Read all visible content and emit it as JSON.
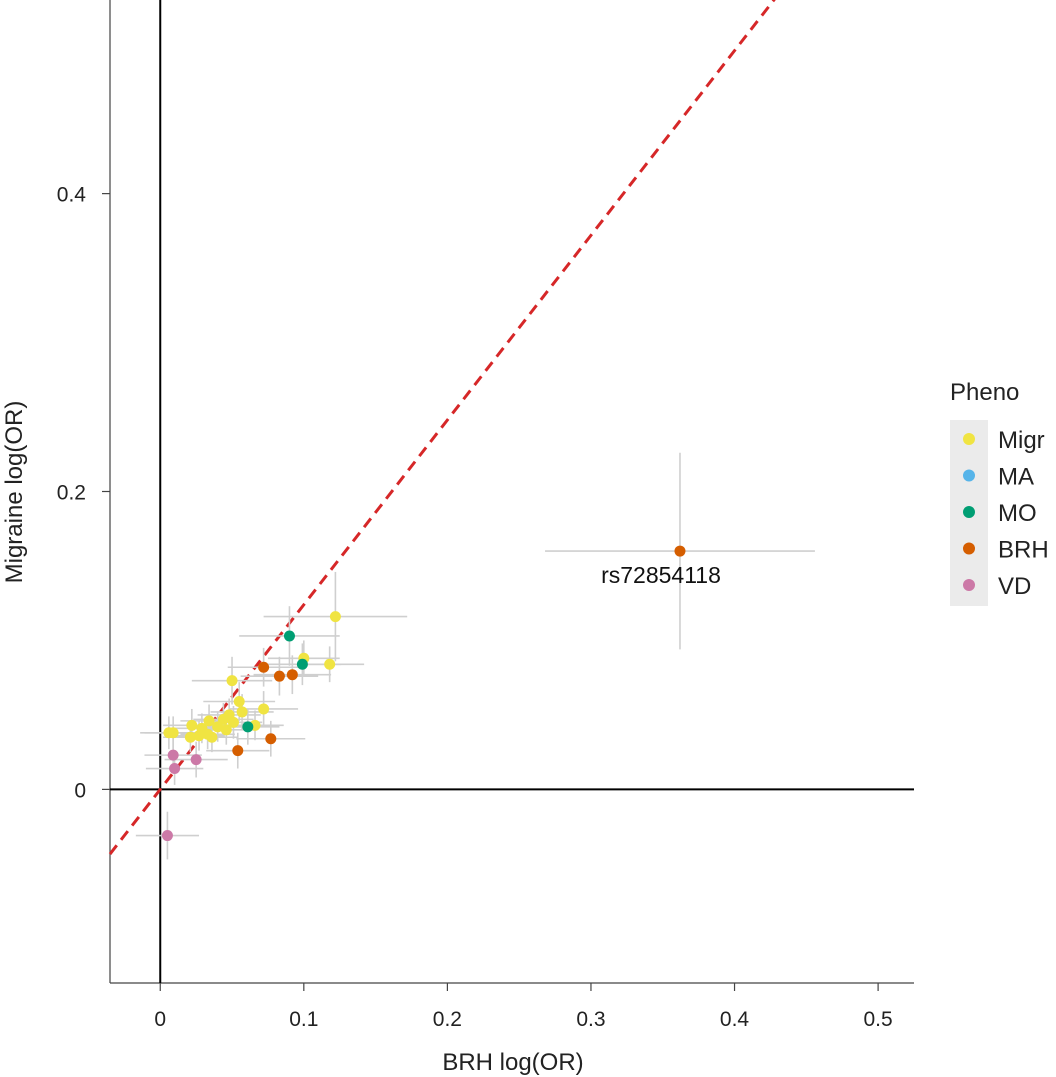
{
  "chart_data": {
    "type": "scatter",
    "title": "",
    "xlabel": "BRH log(OR)",
    "ylabel": "Migraine log(OR)",
    "xlim": [
      -0.035,
      0.525
    ],
    "ylim": [
      -0.13,
      0.53
    ],
    "x_ticks": [
      0,
      0.1,
      0.2,
      0.3,
      0.4,
      0.5
    ],
    "x_tick_labels": [
      "0",
      "0.1",
      "0.2",
      "0.3",
      "0.4",
      "0.5"
    ],
    "y_ticks": [
      0,
      0.2,
      0.4
    ],
    "y_tick_labels": [
      "0",
      "0.2",
      "0.4"
    ],
    "reference_lines": [
      "x = 0",
      "y = 0"
    ],
    "fit_line": {
      "slope": 1.24,
      "intercept": 0.0,
      "color": "#d62728",
      "style": "dashed"
    },
    "error_bar_color": "#cfcfcf",
    "legend": {
      "title": "Pheno",
      "position": "right",
      "entries": [
        {
          "label": "Migr",
          "color": "#f0e442"
        },
        {
          "label": "MA",
          "color": "#56b4e9"
        },
        {
          "label": "MO",
          "color": "#009e73"
        },
        {
          "label": "BRH",
          "color": "#d55e00"
        },
        {
          "label": "VD",
          "color": "#cc79a7"
        }
      ]
    },
    "annotations": [
      {
        "text": "rs72854118",
        "x": 0.362,
        "y": 0.16
      }
    ],
    "series": [
      {
        "name": "Migr",
        "color": "#f0e442",
        "points": [
          {
            "x": 0.122,
            "y": 0.116,
            "xerr": 0.05,
            "yerr": 0.03
          },
          {
            "x": 0.118,
            "y": 0.084,
            "xerr": 0.024,
            "yerr": 0.012
          },
          {
            "x": 0.1,
            "y": 0.088,
            "xerr": 0.025,
            "yerr": 0.012
          },
          {
            "x": 0.05,
            "y": 0.073,
            "xerr": 0.028,
            "yerr": 0.016
          },
          {
            "x": 0.055,
            "y": 0.059,
            "xerr": 0.025,
            "yerr": 0.013
          },
          {
            "x": 0.072,
            "y": 0.054,
            "xerr": 0.024,
            "yerr": 0.012
          },
          {
            "x": 0.057,
            "y": 0.052,
            "xerr": 0.022,
            "yerr": 0.012
          },
          {
            "x": 0.048,
            "y": 0.05,
            "xerr": 0.022,
            "yerr": 0.011
          },
          {
            "x": 0.044,
            "y": 0.047,
            "xerr": 0.021,
            "yerr": 0.011
          },
          {
            "x": 0.034,
            "y": 0.046,
            "xerr": 0.02,
            "yerr": 0.011
          },
          {
            "x": 0.051,
            "y": 0.045,
            "xerr": 0.02,
            "yerr": 0.011
          },
          {
            "x": 0.022,
            "y": 0.043,
            "xerr": 0.02,
            "yerr": 0.011
          },
          {
            "x": 0.04,
            "y": 0.042,
            "xerr": 0.019,
            "yerr": 0.01
          },
          {
            "x": 0.029,
            "y": 0.041,
            "xerr": 0.02,
            "yerr": 0.01
          },
          {
            "x": 0.066,
            "y": 0.043,
            "xerr": 0.02,
            "yerr": 0.01
          },
          {
            "x": 0.046,
            "y": 0.04,
            "xerr": 0.019,
            "yerr": 0.01
          },
          {
            "x": 0.006,
            "y": 0.038,
            "xerr": 0.02,
            "yerr": 0.011
          },
          {
            "x": 0.009,
            "y": 0.038,
            "xerr": 0.02,
            "yerr": 0.011
          },
          {
            "x": 0.033,
            "y": 0.037,
            "xerr": 0.019,
            "yerr": 0.01
          },
          {
            "x": 0.021,
            "y": 0.035,
            "xerr": 0.019,
            "yerr": 0.01
          },
          {
            "x": 0.036,
            "y": 0.035,
            "xerr": 0.018,
            "yerr": 0.01
          },
          {
            "x": 0.027,
            "y": 0.036,
            "xerr": 0.018,
            "yerr": 0.01
          }
        ]
      },
      {
        "name": "MA",
        "color": "#56b4e9",
        "points": []
      },
      {
        "name": "MO",
        "color": "#009e73",
        "points": [
          {
            "x": 0.09,
            "y": 0.103,
            "xerr": 0.035,
            "yerr": 0.02
          },
          {
            "x": 0.099,
            "y": 0.084,
            "xerr": 0.027,
            "yerr": 0.014
          },
          {
            "x": 0.061,
            "y": 0.042,
            "xerr": 0.022,
            "yerr": 0.012
          }
        ]
      },
      {
        "name": "BRH",
        "color": "#d55e00",
        "points": [
          {
            "x": 0.362,
            "y": 0.16,
            "xerr": 0.094,
            "yerr": 0.066
          },
          {
            "x": 0.072,
            "y": 0.082,
            "xerr": 0.025,
            "yerr": 0.013
          },
          {
            "x": 0.083,
            "y": 0.076,
            "xerr": 0.027,
            "yerr": 0.013
          },
          {
            "x": 0.092,
            "y": 0.077,
            "xerr": 0.027,
            "yerr": 0.013
          },
          {
            "x": 0.054,
            "y": 0.026,
            "xerr": 0.022,
            "yerr": 0.012
          },
          {
            "x": 0.077,
            "y": 0.034,
            "xerr": 0.024,
            "yerr": 0.012
          }
        ]
      },
      {
        "name": "VD",
        "color": "#cc79a7",
        "points": [
          {
            "x": 0.009,
            "y": 0.023,
            "xerr": 0.02,
            "yerr": 0.012
          },
          {
            "x": 0.025,
            "y": 0.02,
            "xerr": 0.022,
            "yerr": 0.012
          },
          {
            "x": 0.01,
            "y": 0.014,
            "xerr": 0.02,
            "yerr": 0.011
          },
          {
            "x": 0.005,
            "y": -0.031,
            "xerr": 0.022,
            "yerr": 0.016
          }
        ]
      }
    ]
  }
}
